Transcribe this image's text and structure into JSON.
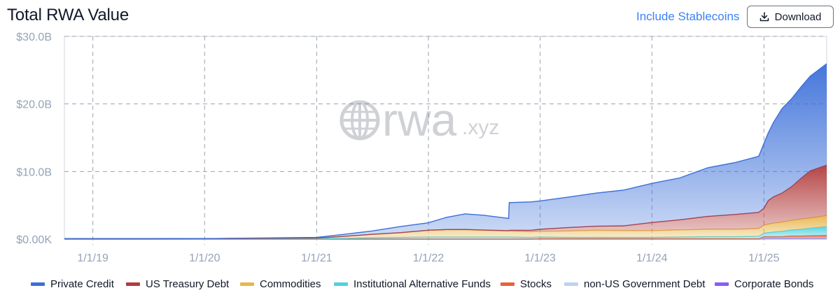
{
  "header": {
    "title": "Total RWA Value",
    "stablecoin_toggle": "Include Stablecoins",
    "download_label": "Download"
  },
  "watermark": {
    "brand": "rwa",
    "suffix": ".xyz"
  },
  "colors": {
    "Private Credit": "#3b6fd9",
    "US Treasury Debt": "#b23c3c",
    "Commodities": "#e8b64c",
    "Institutional Alternative Funds": "#4fd2e0",
    "Stocks": "#e8623c",
    "non-US Government Debt": "#bcd3ee",
    "Corporate Bonds": "#8b5cf6"
  },
  "chart_data": {
    "type": "area",
    "stacked": true,
    "title": "Total RWA Value",
    "x_axis": {
      "ticks": [
        "1/1/19",
        "1/1/20",
        "1/1/21",
        "1/1/22",
        "1/1/23",
        "1/1/24",
        "1/1/25"
      ],
      "range": [
        "2018-09-30",
        "2025-07-25"
      ]
    },
    "y_axis": {
      "ticks": [
        "$0.00K",
        "$10.0B",
        "$20.0B",
        "$30.0B"
      ],
      "range": [
        0,
        30
      ],
      "unit": "billions USD"
    },
    "grid": true,
    "legend_position": "bottom",
    "x": [
      "2018-09-30",
      "2019-06-01",
      "2020-01-01",
      "2020-06-01",
      "2021-01-01",
      "2021-04-01",
      "2021-07-01",
      "2021-10-01",
      "2022-01-01",
      "2022-03-01",
      "2022-05-01",
      "2022-07-01",
      "2022-09-20",
      "2022-09-22",
      "2022-12-01",
      "2023-01-01",
      "2023-04-01",
      "2023-07-01",
      "2023-10-01",
      "2024-01-01",
      "2024-04-01",
      "2024-07-01",
      "2024-10-01",
      "2024-12-15",
      "2025-01-01",
      "2025-01-15",
      "2025-02-01",
      "2025-03-01",
      "2025-04-01",
      "2025-05-01",
      "2025-06-01",
      "2025-07-25"
    ],
    "series": [
      {
        "name": "Corporate Bonds",
        "values": [
          0,
          0,
          0,
          0,
          0,
          0,
          0,
          0,
          0,
          0,
          0,
          0,
          0,
          0,
          0,
          0,
          0,
          0,
          0,
          0,
          0,
          0,
          0,
          0,
          0.05,
          0.05,
          0.05,
          0.05,
          0.05,
          0.05,
          0.05,
          0.05
        ]
      },
      {
        "name": "non-US Government Debt",
        "values": [
          0,
          0,
          0,
          0,
          0,
          0,
          0,
          0,
          0,
          0,
          0,
          0,
          0,
          0,
          0,
          0.05,
          0.05,
          0.05,
          0.05,
          0.05,
          0.05,
          0.05,
          0.05,
          0.05,
          0.1,
          0.1,
          0.1,
          0.1,
          0.1,
          0.1,
          0.1,
          0.1
        ]
      },
      {
        "name": "Stocks",
        "values": [
          0,
          0,
          0,
          0,
          0,
          0,
          0,
          0,
          0,
          0,
          0,
          0,
          0,
          0,
          0,
          0,
          0,
          0,
          0,
          0,
          0,
          0,
          0,
          0,
          0.2,
          0.2,
          0.2,
          0.2,
          0.3,
          0.3,
          0.35,
          0.4
        ]
      },
      {
        "name": "Institutional Alternative Funds",
        "values": [
          0.05,
          0.05,
          0.05,
          0.05,
          0.05,
          0.1,
          0.2,
          0.25,
          0.3,
          0.3,
          0.3,
          0.3,
          0.3,
          0.3,
          0.25,
          0.25,
          0.2,
          0.2,
          0.2,
          0.2,
          0.25,
          0.3,
          0.3,
          0.35,
          0.5,
          0.6,
          0.7,
          0.8,
          0.9,
          1.0,
          1.1,
          1.3
        ]
      },
      {
        "name": "Commodities",
        "values": [
          0,
          0,
          0.02,
          0.05,
          0.1,
          0.3,
          0.5,
          0.7,
          1.0,
          1.1,
          1.1,
          1.0,
          0.9,
          0.9,
          0.85,
          0.85,
          0.95,
          1.05,
          1.0,
          1.0,
          1.05,
          1.1,
          1.1,
          1.15,
          1.2,
          1.25,
          1.3,
          1.35,
          1.4,
          1.5,
          1.5,
          1.6
        ]
      },
      {
        "name": "US Treasury Debt",
        "values": [
          0,
          0,
          0,
          0,
          0,
          0,
          0,
          0,
          0.01,
          0.02,
          0.03,
          0.03,
          0.05,
          0.1,
          0.2,
          0.3,
          0.5,
          0.6,
          0.7,
          1.2,
          1.5,
          1.9,
          2.2,
          2.4,
          2.5,
          3.5,
          3.9,
          4.3,
          5.0,
          6.0,
          7.0,
          7.5
        ]
      },
      {
        "name": "Private Credit",
        "values": [
          0,
          0,
          0,
          0.05,
          0.1,
          0.3,
          0.5,
          0.9,
          1.1,
          1.8,
          2.3,
          2.2,
          1.8,
          4.1,
          4.2,
          4.2,
          4.5,
          4.9,
          5.3,
          5.8,
          6.2,
          7.2,
          7.7,
          8.3,
          9.6,
          10.0,
          11.0,
          12.5,
          13.0,
          13.5,
          14.0,
          15.0
        ]
      }
    ]
  }
}
